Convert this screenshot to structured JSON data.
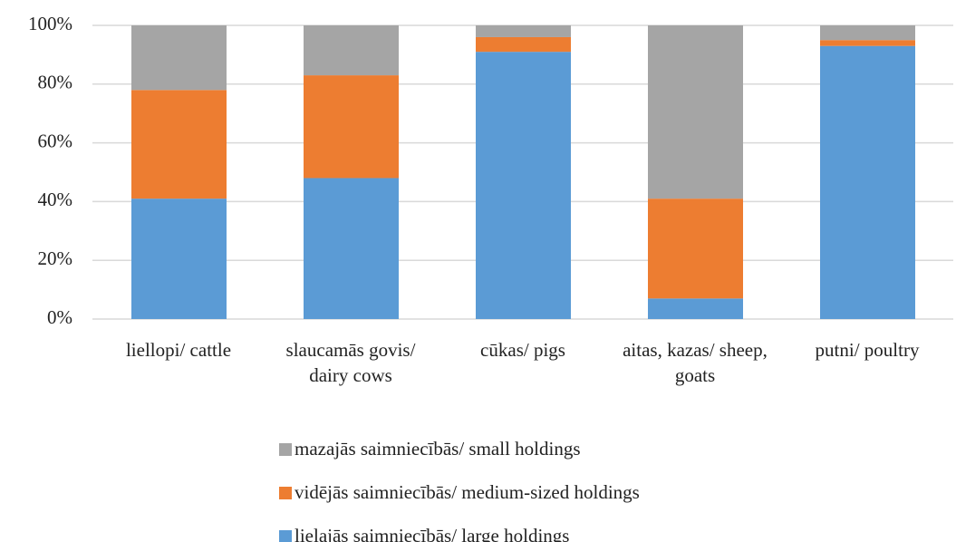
{
  "chart_data": {
    "type": "stacked_bar",
    "categories": [
      "liellopi/ cattle",
      "slaucamās govis/ dairy cows",
      "cūkas/ pigs",
      "aitas, kazas/ sheep, goats",
      "putni/ poultry"
    ],
    "series": [
      {
        "name": "lielajās saimniecībās/ large holdings",
        "color": "#5b9bd5",
        "values": [
          41,
          48,
          91,
          7,
          93
        ]
      },
      {
        "name": "vidējās saimniecībās/ medium-sized holdings",
        "color": "#ed7d31",
        "values": [
          37,
          35,
          5,
          34,
          2
        ]
      },
      {
        "name": "mazajās saimniecībās/ small holdings",
        "color": "#a5a5a5",
        "values": [
          22,
          17,
          4,
          59,
          5
        ]
      }
    ],
    "ylim": [
      0,
      100
    ],
    "yticks": [
      {
        "value": 0,
        "label": "0%"
      },
      {
        "value": 20,
        "label": "20%"
      },
      {
        "value": 40,
        "label": "40%"
      },
      {
        "value": 60,
        "label": "60%"
      },
      {
        "value": 80,
        "label": "80%"
      },
      {
        "value": 100,
        "label": "100%"
      }
    ],
    "grid": true
  }
}
